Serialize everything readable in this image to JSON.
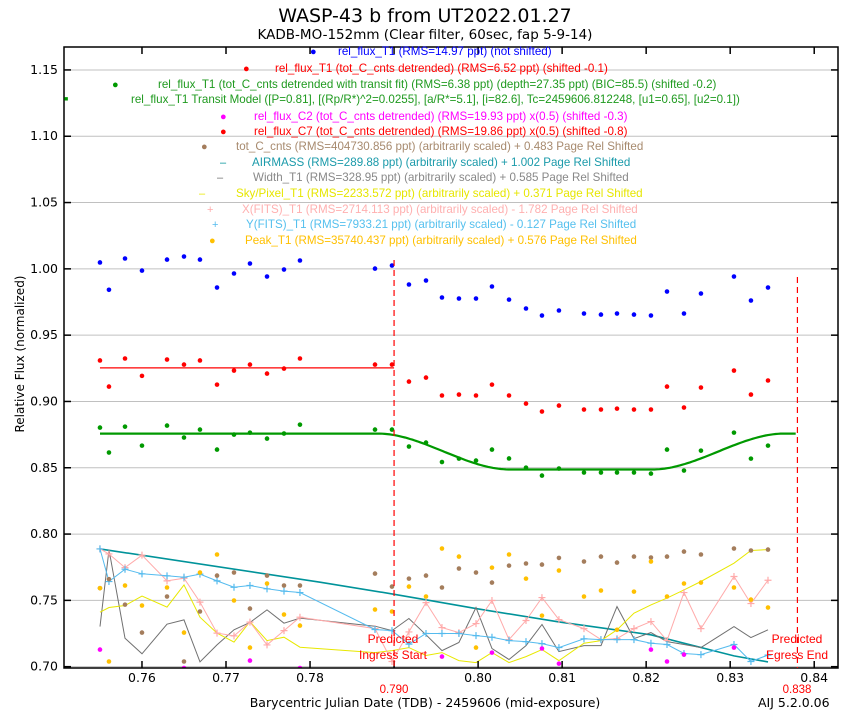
{
  "chart_data": {
    "type": "scatter",
    "title": "WASP-43 b from UT2022.01.27",
    "subtitle": "KADB-MO-152mm (Clear filter, 60sec, fap 5-9-14)",
    "xlabel": "Barycentric Julian Date (TDB) - 2459606 (mid-exposure)",
    "ylabel": "Relative Flux (normalized)",
    "version_label": "AIJ 5.2.0.06",
    "xlim": [
      0.75072,
      0.84283
    ],
    "ylim": [
      0.699,
      1.1673
    ],
    "grid": "horizontal",
    "xticks": [
      0.76,
      0.77,
      0.78,
      0.79,
      0.8,
      0.81,
      0.82,
      0.83,
      0.84
    ],
    "xtick_labels": [
      "0.76",
      "0.77",
      "0.78",
      "0.79",
      "0.80",
      "0.81",
      "0.82",
      "0.83",
      "0.84"
    ],
    "yticks": [
      0.7,
      0.75,
      0.8,
      0.85,
      0.9,
      0.95,
      1.0,
      1.05,
      1.1,
      1.15
    ],
    "ytick_labels": [
      "0.70",
      "0.75",
      "0.80",
      "0.85",
      "0.90",
      "0.95",
      "1.00",
      "1.05",
      "1.10",
      "1.15"
    ],
    "ingress": {
      "t": 0.79,
      "label": "0.790",
      "text1": "Predicted",
      "text2": "Ingress Start",
      "color": "#ff0000"
    },
    "egress": {
      "t": 0.838,
      "label": "0.838",
      "text1": "Predicted",
      "text2": "Egress End",
      "color": "#ff0000"
    },
    "t": [
      0.755,
      0.75607,
      0.75798,
      0.76,
      0.76298,
      0.765,
      0.7669,
      0.76893,
      0.77095,
      0.77285,
      0.77488,
      0.7769,
      0.7788,
      0.78773,
      0.78975,
      0.79177,
      0.7938,
      0.7957,
      0.79772,
      0.79975,
      0.80165,
      0.80368,
      0.8057,
      0.8076,
      0.80962,
      0.8126,
      0.81462,
      0.81653,
      0.81855,
      0.82057,
      0.82248,
      0.8245,
      0.82652,
      0.83045,
      0.83247,
      0.8345
    ],
    "series": [
      {
        "key": "blue",
        "legend": "rel_flux_T1 (RMS=14.97 ppt) (not shifted)",
        "color": "#0000ff",
        "text_color": "#0000ff",
        "marker": "dot",
        "line": false,
        "values": [
          1.0048,
          0.9842,
          1.0078,
          0.9987,
          1.007,
          1.0093,
          1.007,
          0.9859,
          0.9965,
          1.004,
          0.9942,
          0.9995,
          1.0063,
          1.0002,
          1.0025,
          0.9882,
          0.9912,
          0.9784,
          0.9776,
          0.9776,
          0.9867,
          0.9768,
          0.9701,
          0.9648,
          0.9686,
          0.9663,
          0.9655,
          0.9663,
          0.9655,
          0.9648,
          0.9829,
          0.9663,
          0.9814,
          0.9942,
          0.9761,
          0.9859
        ]
      },
      {
        "key": "red",
        "legend": "rel_flux_T1 (tot_C_cnts detrended) (RMS=6.52 ppt) (shifted -0.1)",
        "color": "#ff0000",
        "text_color": "#ff0000",
        "marker": "dot",
        "line": false,
        "values": [
          0.9309,
          0.9112,
          0.9324,
          0.9193,
          0.9316,
          0.9278,
          0.9309,
          0.9127,
          0.9233,
          0.9278,
          0.921,
          0.9248,
          0.9324,
          0.9278,
          0.9278,
          0.915,
          0.918,
          0.9045,
          0.9052,
          0.9045,
          0.9127,
          0.9045,
          0.8984,
          0.8924,
          0.8969,
          0.8939,
          0.8939,
          0.8946,
          0.8939,
          0.8939,
          0.9112,
          0.8954,
          0.9105,
          0.9233,
          0.9052,
          0.9158
        ]
      },
      {
        "key": "green",
        "legend": "rel_flux_T1 (tot_C_cnts detrended with transit fit) (RMS=6.38 ppt) (depth=27.35 ppt) (BIC=85.5) (shifted -0.2)",
        "color": "#009900",
        "text_color": "#1f9a1f",
        "marker": "dot",
        "line": false,
        "values": [
          0.8803,
          0.8615,
          0.881,
          0.8667,
          0.8818,
          0.8728,
          0.8788,
          0.8637,
          0.875,
          0.8765,
          0.872,
          0.8758,
          0.8825,
          0.8788,
          0.8788,
          0.866,
          0.869,
          0.8543,
          0.8569,
          0.8554,
          0.8637,
          0.857,
          0.8501,
          0.8441,
          0.8494,
          0.8464,
          0.8464,
          0.8464,
          0.8464,
          0.8456,
          0.8637,
          0.8479,
          0.8629,
          0.8765,
          0.8569,
          0.8667
        ]
      },
      {
        "key": "magenta",
        "legend": "rel_flux_C2 (tot_C_cnts detrended) (RMS=19.93 ppt) x(0.5) (shifted -0.3)",
        "color": "#ff00ff",
        "text_color": "#ff00ff",
        "marker": "dot",
        "line": false,
        "values": [
          0.7129,
          0.69,
          0.69,
          0.69,
          0.69,
          0.699,
          0.69,
          0.69,
          0.69,
          0.7046,
          0.69,
          0.69,
          0.699,
          0.69,
          0.69,
          0.69,
          0.69,
          0.7076,
          0.69,
          0.69,
          0.7106,
          0.69,
          0.69,
          0.7137,
          0.7023,
          0.69,
          0.69,
          0.69,
          0.69,
          0.7129,
          0.7039,
          0.7091,
          0.69,
          0.7144,
          0.69,
          0.69
        ]
      },
      {
        "key": "c7",
        "legend": "rel_flux_C7 (tot_C_cnts detrended) (RMS=19.86 ppt) x(0.5) (shifted -0.8)",
        "color": "#ff0000",
        "text_color": "#ff0000",
        "marker": "dot",
        "line": false,
        "values": []
      },
      {
        "key": "brown",
        "legend": "tot_C_cnts (RMS=404730.856 ppt) (arbitrarily scaled) + 0.483 Page Rel Shifted",
        "color": "#a47d5c",
        "text_color": "#a78a6e",
        "marker": "dot",
        "line": false,
        "values": [
          0.7592,
          0.766,
          0.7468,
          0.7257,
          0.7529,
          0.7039,
          0.7416,
          0.7687,
          0.771,
          0.7438,
          0.7687,
          0.7612,
          0.7612,
          0.7702,
          0.7604,
          0.7664,
          0.7687,
          0.7597,
          0.774,
          0.771,
          0.7634,
          0.7762,
          0.7778,
          0.777,
          0.782,
          0.7793,
          0.783,
          0.7785,
          0.783,
          0.7823,
          0.783,
          0.7868,
          0.7846,
          0.7891,
          0.7876,
          0.7883
        ]
      },
      {
        "key": "teal",
        "legend": "AIRMASS (RMS=289.88 ppt) (arbitrarily scaled) + 1.002 Page Rel Shifted",
        "color": "#00939a",
        "text_color": "#1a9aaa",
        "marker": "none",
        "line": true,
        "t": [
          0.755,
          0.78118,
          0.78975,
          0.7938,
          0.79975,
          0.80962,
          0.82057,
          0.83045,
          0.8345
        ],
        "values": [
          0.7888,
          0.7637,
          0.7549,
          0.7504,
          0.7438,
          0.7338,
          0.724,
          0.7081,
          0.7036
        ]
      },
      {
        "key": "gray",
        "legend": "Width_T1 (RMS=328.95 ppt) (arbitrarily scaled) + 0.585 Page Rel Shifted",
        "color": "#707070",
        "text_color": "#888888",
        "marker": "none",
        "line": true,
        "values": [
          0.7302,
          0.7881,
          0.7215,
          0.7097,
          0.732,
          0.7353,
          0.7036,
          0.7164,
          0.7278,
          0.7333,
          0.7428,
          0.7328,
          0.7366,
          0.7305,
          0.7272,
          0.7363,
          0.724,
          0.7121,
          0.7182,
          0.7446,
          0.7137,
          0.7054,
          0.7159,
          0.7318,
          0.7114,
          0.7159,
          0.7159,
          0.7453,
          0.7212,
          0.7257,
          0.7189,
          0.7167,
          0.7144,
          0.7302,
          0.7219,
          0.7278
        ]
      },
      {
        "key": "yellow",
        "legend": "Sky/Pixel_T1 (RMS=2233.572 ppt) (arbitrarily scaled) + 0.371 Page Rel Shifted",
        "color": "#e8e800",
        "text_color": "#e6e600",
        "marker": "none",
        "line": true,
        "values": [
          0.7411,
          0.7446,
          0.7461,
          0.7532,
          0.7449,
          0.7617,
          0.7373,
          0.7253,
          0.7185,
          0.734,
          0.7197,
          0.7222,
          0.7147,
          0.7106,
          0.7121,
          0.7144,
          0.7084,
          0.7106,
          0.7046,
          0.7031,
          0.7106,
          0.7031,
          0.7076,
          0.7129,
          0.7046,
          0.7177,
          0.7197,
          0.7278,
          0.7403,
          0.7466,
          0.7517,
          0.7579,
          0.7642,
          0.778,
          0.7876,
          0.7883
        ]
      },
      {
        "key": "pink",
        "legend": "X(FITS)_T1 (RMS=2714.113 ppt) (arbitrarily scaled) - 1.782 Page Rel Shifted",
        "color": "#ffaaaa",
        "text_color": "#ffb0b0",
        "marker": "plus",
        "line": true,
        "values": [
          0.7888,
          0.785,
          0.7747,
          0.7841,
          0.7647,
          0.7667,
          0.7487,
          0.7253,
          0.7232,
          0.7336,
          0.7164,
          0.7272,
          0.7373,
          0.7287,
          0.7039,
          0.7262,
          0.7483,
          0.7295,
          0.7257,
          0.7325,
          0.7499,
          0.7204,
          0.7348,
          0.7521,
          0.7355,
          0.7287,
          0.7204,
          0.7212,
          0.7287,
          0.734,
          0.7197,
          0.7559,
          0.7287,
          0.768,
          0.7476,
          0.7652
        ]
      },
      {
        "key": "cyan",
        "legend": "Y(FITS)_T1 (RMS=7933.21 ppt) (arbitrarily scaled) - 0.127 Page Rel Shifted",
        "color": "#55bbee",
        "text_color": "#55c0ee",
        "marker": "plus",
        "line": true,
        "values": [
          0.7888,
          0.7642,
          0.7735,
          0.77,
          0.7685,
          0.7675,
          0.7698,
          0.7647,
          0.7599,
          0.7612,
          0.7587,
          0.757,
          0.7559,
          0.728,
          0.7272,
          0.717,
          0.725,
          0.725,
          0.725,
          0.7234,
          0.7222,
          0.7197,
          0.7189,
          0.7174,
          0.7144,
          0.721,
          0.7204,
          0.7204,
          0.7204,
          0.7177,
          0.7167,
          0.7099,
          0.7091,
          0.7167,
          0.7039,
          0.7087
        ]
      },
      {
        "key": "orange",
        "legend": "Peak_T1 (RMS=35740.437 ppt) (arbitrarily scaled) + 0.576 Page Rel Shifted",
        "color": "#ffc000",
        "text_color": "#ffc000",
        "marker": "dot",
        "line": false,
        "values": [
          0.7592,
          0.7039,
          0.7612,
          0.7461,
          0.7597,
          0.7257,
          0.771,
          0.7846,
          0.7499,
          0.7144,
          0.7627,
          0.7393,
          0.731,
          0.7431,
          0.7416,
          0.7604,
          0.7529,
          0.7891,
          0.783,
          0.7144,
          0.7747,
          0.7846,
          0.7664,
          0.7385,
          0.7725,
          0.7529,
          0.7574,
          0.7278,
          0.7566,
          0.7793,
          0.7529,
          0.7627,
          0.7634,
          0.7597,
          0.7506,
          0.7446
        ]
      }
    ],
    "model": {
      "legend": "rel_flux_T1 Transit Model ([P=0.81], [(Rp/R*)^2=0.0255], [a/R*=5.1], [i=82.6], Tc=2459606.812248, [u1=0.65], [u2=0.1])",
      "color": "#009900",
      "text_color": "#1f9a1f",
      "tc": 0.812248,
      "half_duration": 0.0242,
      "baseline": 0.8758,
      "depth": 0.0271,
      "t_start": 0.755,
      "t_end": 0.838
    },
    "pre_ingress_mean": {
      "color": "#ff0000",
      "value": 0.9253,
      "t_start": 0.755,
      "t_end": 0.79
    }
  }
}
